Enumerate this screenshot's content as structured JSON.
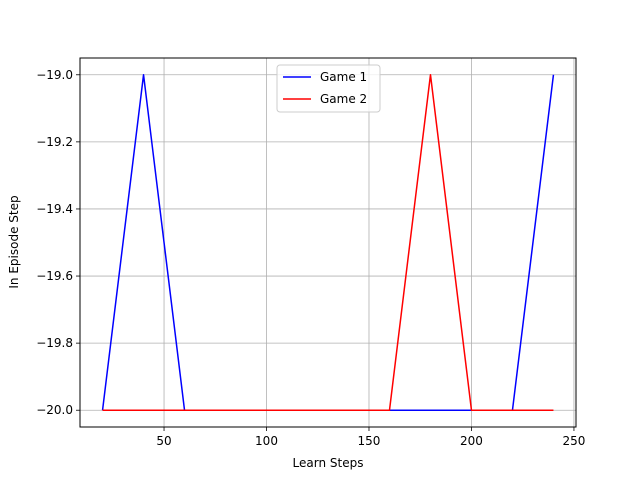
{
  "chart_data": {
    "type": "line",
    "xlabel": "Learn Steps",
    "ylabel": "In Episode Step",
    "xlim": [
      9,
      251
    ],
    "ylim": [
      -20.05,
      -18.95
    ],
    "xticks": [
      50,
      100,
      150,
      200,
      250
    ],
    "yticks": [
      -19.0,
      -19.2,
      -19.4,
      -19.6,
      -19.8,
      -20.0
    ],
    "ytick_labels": [
      "−19.0",
      "−19.2",
      "−19.4",
      "−19.6",
      "−19.8",
      "−20.0"
    ],
    "grid": true,
    "legend_position": "top-center",
    "series": [
      {
        "name": "Game 1",
        "color": "#0000ff",
        "x": [
          20,
          40,
          60,
          80,
          100,
          120,
          140,
          160,
          180,
          200,
          220,
          240
        ],
        "y": [
          -20.0,
          -19.0,
          -20.0,
          -20.0,
          -20.0,
          -20.0,
          -20.0,
          -20.0,
          -20.0,
          -20.0,
          -20.0,
          -19.0
        ]
      },
      {
        "name": "Game 2",
        "color": "#ff0000",
        "x": [
          20,
          40,
          60,
          80,
          100,
          120,
          140,
          160,
          180,
          200,
          220,
          240
        ],
        "y": [
          -20.0,
          -20.0,
          -20.0,
          -20.0,
          -20.0,
          -20.0,
          -20.0,
          -20.0,
          -19.0,
          -20.0,
          -20.0,
          -20.0
        ]
      }
    ]
  }
}
